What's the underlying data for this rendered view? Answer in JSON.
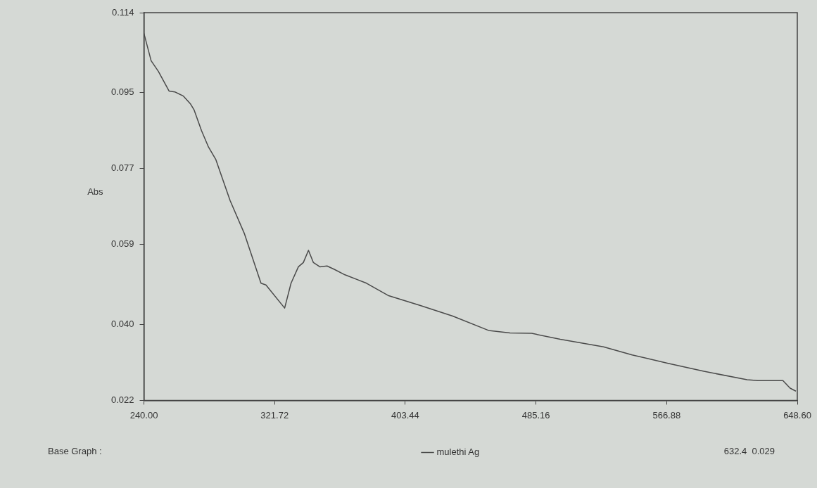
{
  "chart_data": {
    "type": "line",
    "ylabel": "Abs",
    "legend": "bottom",
    "grid": false,
    "marker": "none",
    "line_style": "solid",
    "xlim": [
      240,
      648.6
    ],
    "ylim": [
      0.022,
      0.114
    ],
    "xticks": [
      {
        "value": 240,
        "label": "240.00"
      },
      {
        "value": 321.72,
        "label": "321.72"
      },
      {
        "value": 403.44,
        "label": "403.44"
      },
      {
        "value": 485.16,
        "label": "485.16"
      },
      {
        "value": 566.88,
        "label": "566.88"
      },
      {
        "value": 648.6,
        "label": "648.60"
      }
    ],
    "yticks": [
      {
        "value": 0.022,
        "label": "0.022"
      },
      {
        "value": 0.04,
        "label": "0.040"
      },
      {
        "value": 0.059,
        "label": "0.059"
      },
      {
        "value": 0.077,
        "label": "0.077"
      },
      {
        "value": 0.095,
        "label": "0.095"
      },
      {
        "value": 0.114,
        "label": "0.114"
      }
    ],
    "annotations": [
      "Base Graph :",
      "632.4  0.029"
    ],
    "series": [
      {
        "name": "mulethi Ag",
        "color": "#4a4a4a",
        "x": [
          240,
          244.5,
          249,
          255.7,
          259.3,
          264.7,
          269.2,
          271.4,
          276,
          280.4,
          284.9,
          293.9,
          302.9,
          313.2,
          316.3,
          328,
          332,
          336.6,
          339.7,
          342.9,
          346,
          350,
          354.5,
          359,
          365.7,
          379.2,
          392.7,
          412.9,
          433.1,
          455.5,
          469,
          482.5,
          500.4,
          527.4,
          545.3,
          567.8,
          590.2,
          617.2,
          623.9,
          639.6,
          644.1,
          647.7
        ],
        "values": [
          0.1091,
          0.1026,
          0.1001,
          0.0954,
          0.0952,
          0.0942,
          0.0923,
          0.0909,
          0.086,
          0.0821,
          0.0792,
          0.0694,
          0.0615,
          0.0498,
          0.0494,
          0.0439,
          0.0498,
          0.0537,
          0.0547,
          0.0576,
          0.0547,
          0.0537,
          0.0539,
          0.0531,
          0.0518,
          0.0498,
          0.0469,
          0.0445,
          0.042,
          0.0386,
          0.038,
          0.0379,
          0.0365,
          0.0347,
          0.0328,
          0.0308,
          0.0289,
          0.0269,
          0.0267,
          0.0267,
          0.0249,
          0.0242
        ]
      }
    ]
  }
}
